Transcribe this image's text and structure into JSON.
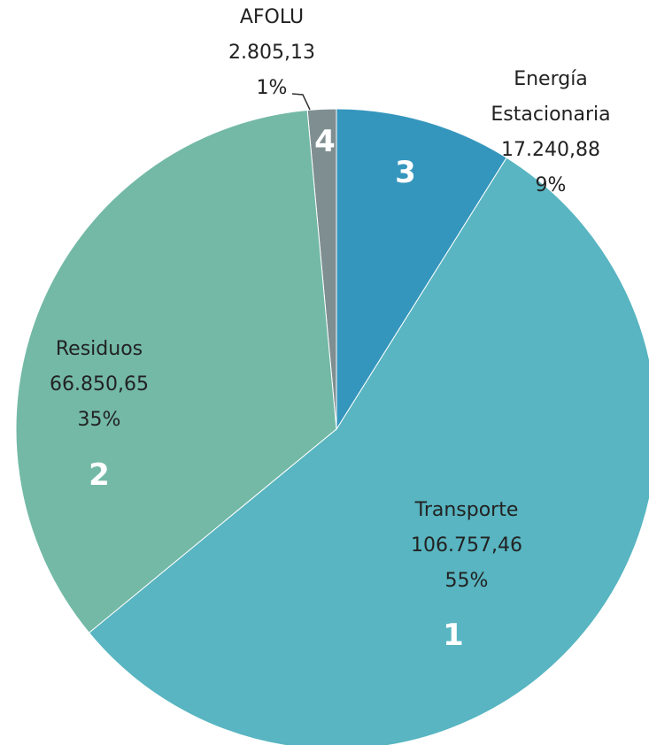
{
  "chart_data": {
    "type": "pie",
    "categories": [
      "Energía Estacionaria",
      "Transporte",
      "Residuos",
      "AFOLU"
    ],
    "values": [
      17240.88,
      106757.46,
      66850.65,
      2805.13
    ],
    "value_labels": [
      "17.240,88",
      "106.757,46",
      "66.850,65",
      "2.805,13"
    ],
    "percent_labels": [
      "9%",
      "55%",
      "35%",
      "1%"
    ],
    "ranks": [
      3,
      1,
      2,
      4
    ],
    "colors": [
      "#3596bd",
      "#58b5c1",
      "#73b9a6",
      "#7f8e91"
    ]
  }
}
